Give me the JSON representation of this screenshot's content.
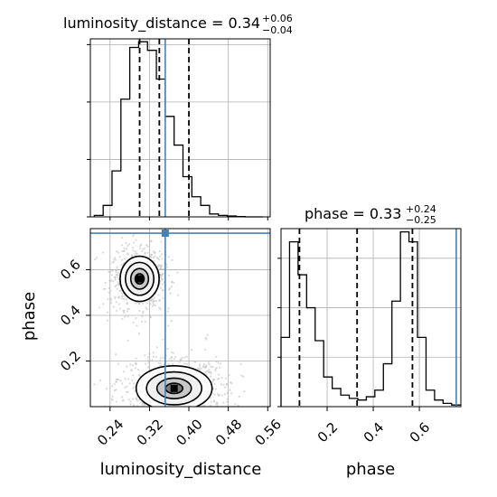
{
  "colors": {
    "truth": "#4682b4",
    "grid": "#b0b0b0",
    "hist": "#000000",
    "points": "#bbbbbb",
    "truth_marker": "#4682b4"
  },
  "chart_data": {
    "type": "corner",
    "parameters": [
      "luminosity_distance",
      "phase"
    ],
    "truths": {
      "luminosity_distance": 0.352,
      "phase": 0.76
    },
    "panels": {
      "luminosity_distance_hist": {
        "type": "step-histogram",
        "title": {
          "main": "luminosity_distance = 0.34",
          "sup": "+0.06",
          "sub": "−0.04"
        },
        "xlim": [
          0.2,
          0.565
        ],
        "bin_edges": [
          0.208,
          0.226,
          0.244,
          0.262,
          0.28,
          0.298,
          0.316,
          0.334,
          0.352,
          0.37,
          0.388,
          0.406,
          0.424,
          0.442,
          0.46,
          0.478,
          0.496,
          0.514,
          0.532,
          0.55
        ],
        "counts": [
          0.05,
          0.4,
          1.6,
          4.1,
          5.9,
          6.1,
          5.8,
          4.8,
          3.5,
          2.5,
          1.4,
          0.7,
          0.4,
          0.1,
          0.05,
          0.03,
          0.01,
          0,
          0
        ],
        "quantiles": [
          0.3,
          0.34,
          0.4
        ],
        "ylim": [
          0,
          6.2
        ],
        "yticks": [
          0,
          2,
          4,
          6
        ]
      },
      "phase_hist": {
        "type": "step-histogram",
        "title": {
          "main": "phase = 0.33",
          "sup": "+0.24",
          "sub": "−0.25"
        },
        "xlim": [
          0.0,
          0.78
        ],
        "bin_edges": [
          0.0,
          0.037,
          0.074,
          0.111,
          0.148,
          0.185,
          0.222,
          0.259,
          0.296,
          0.333,
          0.37,
          0.407,
          0.444,
          0.481,
          0.518,
          0.555,
          0.592,
          0.629,
          0.666,
          0.703,
          0.74,
          0.78
        ],
        "counts": [
          2.1,
          5.0,
          4.0,
          3.0,
          2.0,
          0.9,
          0.55,
          0.35,
          0.25,
          0.2,
          0.3,
          0.5,
          1.3,
          3.2,
          5.3,
          5.0,
          2.1,
          0.5,
          0.2,
          0.1,
          0.05
        ],
        "quantiles": [
          0.08,
          0.33,
          0.57
        ],
        "ylim": [
          0,
          5.4
        ],
        "yticks": [
          0,
          1.5,
          3,
          4.5
        ],
        "xticks": [
          0.2,
          0.4,
          0.6
        ],
        "xticklabels": [
          "0.2",
          "0.4",
          "0.6"
        ],
        "xlabel": "phase"
      },
      "joint": {
        "type": "2d-kde-contour",
        "xlim": [
          0.2,
          0.565
        ],
        "ylim": [
          0.0,
          0.78
        ],
        "xticks": [
          0.24,
          0.32,
          0.4,
          0.48,
          0.56
        ],
        "xticklabels": [
          "0.24",
          "0.32",
          "0.40",
          "0.48",
          "0.56"
        ],
        "yticks": [
          0.2,
          0.4,
          0.6
        ],
        "yticklabels": [
          "0.2",
          "0.4",
          "0.6"
        ],
        "xlabel": "luminosity_distance",
        "ylabel": "phase",
        "modes": [
          {
            "x": 0.3,
            "y": 0.56,
            "sx": 0.018,
            "sy": 0.045,
            "weight": 0.45
          },
          {
            "x": 0.37,
            "y": 0.08,
            "sx": 0.035,
            "sy": 0.045,
            "weight": 0.55
          }
        ]
      }
    }
  }
}
